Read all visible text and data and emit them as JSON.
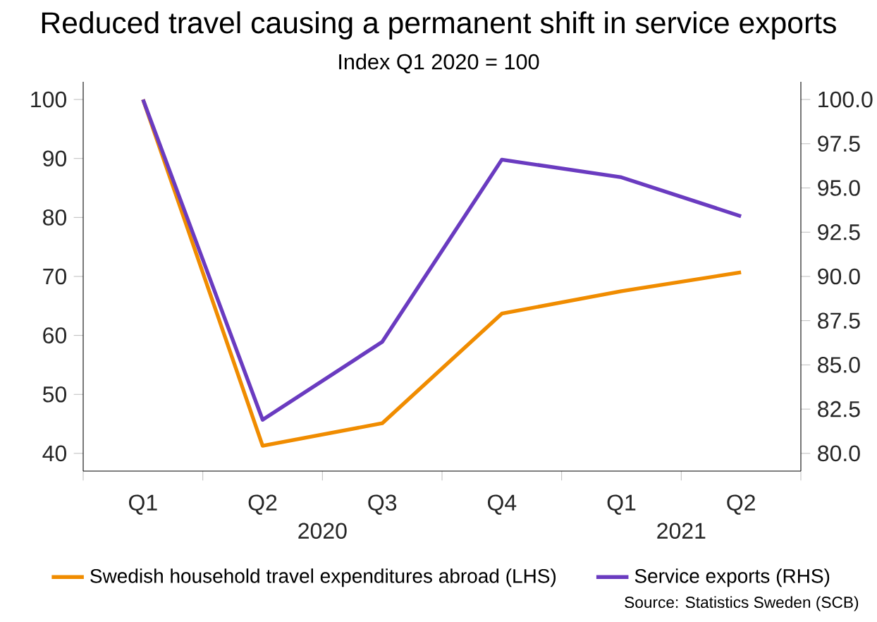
{
  "chart_data": {
    "type": "line",
    "title": "Reduced travel causing a permanent shift in service exports",
    "subtitle": "Index Q1 2020 = 100",
    "categories": [
      "Q1",
      "Q2",
      "Q3",
      "Q4",
      "Q1",
      "Q2"
    ],
    "series": [
      {
        "name": "Swedish household travel expenditures abroad (LHS)",
        "color": "#f08c00",
        "values": [
          100,
          41.3,
          45.1,
          63.7,
          67.5,
          70.7
        ]
      },
      {
        "name": "Service exports (RHS)",
        "color": "#6a3bc0",
        "axis": "y2",
        "values": [
          100,
          81.9,
          86.3,
          96.6,
          95.6,
          93.4
        ]
      }
    ],
    "ylim": [
      37,
      103
    ],
    "yticks": [
      40,
      50,
      60,
      70,
      80,
      90,
      100
    ],
    "y2lim": [
      79,
      101
    ],
    "y2ticks": [
      {
        "value": 80,
        "label": "80.0"
      },
      {
        "value": 82.5,
        "label": "82.5"
      },
      {
        "value": 85,
        "label": "85.0"
      },
      {
        "value": 87.5,
        "label": "87.5"
      },
      {
        "value": 90,
        "label": "90.0"
      },
      {
        "value": 92.5,
        "label": "92.5"
      },
      {
        "value": 95,
        "label": "95.0"
      },
      {
        "value": 97.5,
        "label": "97.5"
      },
      {
        "value": 100,
        "label": "100.0"
      }
    ],
    "legend": "bottom",
    "grid": false,
    "marker": "none",
    "line_style": "solid",
    "annotations": [
      "2020",
      "2021",
      "Source: Statistics Sweden (SCB)"
    ]
  }
}
